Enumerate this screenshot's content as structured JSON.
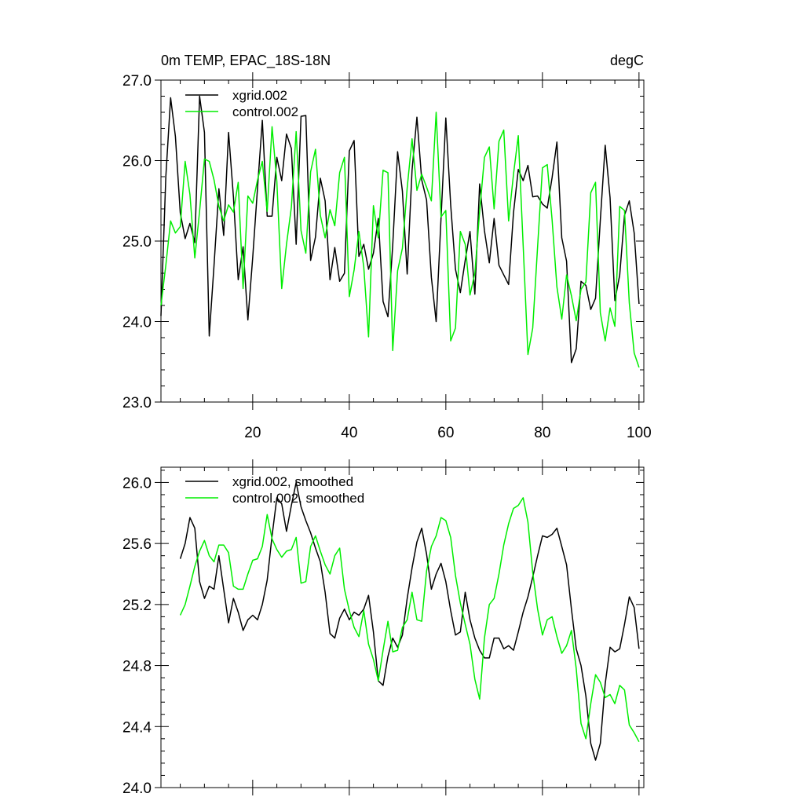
{
  "chart_data": [
    {
      "type": "line",
      "title_left": "0m TEMP, EPAC_18S-18N",
      "title_right": "degC",
      "xlim": [
        1,
        101
      ],
      "ylim": [
        23.0,
        27.0
      ],
      "x_ticks": [
        20,
        40,
        60,
        80,
        100
      ],
      "x_tick_labels": [
        "20",
        "40",
        "60",
        "80",
        "100"
      ],
      "y_ticks": [
        23.0,
        24.0,
        25.0,
        26.0,
        27.0
      ],
      "y_tick_labels": [
        "23.0",
        "24.0",
        "25.0",
        "26.0",
        "27.0"
      ],
      "legend_placement": "top-left",
      "grid": false,
      "series": [
        {
          "name": "xgrid.002",
          "color": "#000000",
          "x_start": 1,
          "values": [
            24.07,
            25.8,
            26.78,
            26.3,
            25.35,
            25.03,
            25.22,
            24.98,
            26.8,
            26.35,
            23.82,
            24.7,
            25.65,
            25.07,
            26.35,
            25.55,
            24.52,
            24.93,
            24.02,
            24.8,
            25.66,
            26.5,
            25.31,
            25.31,
            26.04,
            25.75,
            26.33,
            26.15,
            24.96,
            26.55,
            26.56,
            24.76,
            25.05,
            25.78,
            25.5,
            24.52,
            24.92,
            24.5,
            24.6,
            26.12,
            26.25,
            24.81,
            24.96,
            24.65,
            24.85,
            25.28,
            24.25,
            24.06,
            24.95,
            26.11,
            25.62,
            24.59,
            25.88,
            26.54,
            25.76,
            25.51,
            24.55,
            24.0,
            25.28,
            26.53,
            25.45,
            24.65,
            24.36,
            24.76,
            25.12,
            24.34,
            25.71,
            25.13,
            24.73,
            25.28,
            24.7,
            24.58,
            24.46,
            25.35,
            25.89,
            25.75,
            25.94,
            25.55,
            25.56,
            25.46,
            25.41,
            25.79,
            26.23,
            25.04,
            24.75,
            23.49,
            23.66,
            24.5,
            24.45,
            24.15,
            24.29,
            25.26,
            26.19,
            25.54,
            24.26,
            24.58,
            25.32,
            25.5,
            25.1,
            24.22
          ]
        },
        {
          "name": "control.002",
          "color": "#00ee00",
          "x_start": 1,
          "values": [
            24.2,
            24.7,
            25.25,
            25.1,
            25.18,
            25.99,
            25.58,
            24.79,
            25.37,
            26.02,
            25.99,
            25.76,
            25.43,
            25.25,
            25.45,
            25.36,
            25.73,
            24.41,
            25.56,
            25.47,
            25.76,
            25.99,
            25.37,
            26.42,
            25.74,
            24.41,
            24.96,
            25.42,
            26.36,
            25.13,
            24.85,
            25.86,
            26.14,
            25.32,
            25.04,
            25.39,
            25.19,
            25.85,
            26.04,
            24.31,
            24.64,
            25.12,
            24.68,
            23.81,
            25.44,
            25.04,
            25.88,
            25.85,
            23.64,
            24.63,
            24.91,
            25.66,
            26.27,
            25.63,
            25.83,
            25.67,
            25.5,
            26.6,
            25.3,
            25.38,
            23.76,
            23.92,
            25.12,
            24.96,
            24.33,
            24.6,
            25.37,
            26.04,
            26.17,
            25.4,
            26.24,
            26.38,
            25.25,
            25.83,
            26.31,
            24.95,
            23.59,
            23.92,
            24.93,
            25.91,
            25.95,
            25.26,
            24.43,
            24.03,
            24.58,
            24.32,
            24.01,
            24.4,
            24.49,
            25.6,
            25.73,
            24.11,
            23.76,
            24.17,
            23.94,
            25.43,
            25.38,
            24.23,
            23.61,
            23.43
          ]
        }
      ]
    },
    {
      "type": "line",
      "xlim": [
        1,
        101
      ],
      "ylim": [
        24.0,
        26.1
      ],
      "x_ticks": [
        20,
        40,
        60,
        80,
        100
      ],
      "y_ticks": [
        24.0,
        24.4,
        24.8,
        25.2,
        25.6,
        26.0
      ],
      "y_tick_labels": [
        "24.0",
        "24.4",
        "24.8",
        "25.2",
        "25.6",
        "26.0"
      ],
      "legend_placement": "top-left",
      "grid": false,
      "series": [
        {
          "name": "xgrid.002, smoothed",
          "color": "#000000",
          "x_start": 5,
          "values": [
            25.5,
            25.6,
            25.77,
            25.7,
            25.35,
            25.24,
            25.32,
            25.3,
            25.52,
            25.3,
            25.08,
            25.24,
            25.15,
            25.03,
            25.1,
            25.13,
            25.1,
            25.2,
            25.36,
            25.65,
            25.9,
            25.86,
            25.68,
            25.85,
            26.0,
            25.84,
            25.75,
            25.67,
            25.57,
            25.48,
            25.28,
            25.01,
            24.98,
            25.11,
            25.17,
            25.1,
            25.15,
            25.13,
            25.17,
            25.26,
            25.02,
            24.7,
            24.67,
            24.86,
            24.98,
            24.92,
            25.0,
            25.24,
            25.44,
            25.61,
            25.7,
            25.53,
            25.3,
            25.4,
            25.47,
            25.35,
            25.16,
            25.0,
            25.02,
            25.28,
            25.1,
            24.98,
            24.9,
            24.85,
            24.85,
            24.98,
            24.98,
            24.91,
            24.93,
            24.9,
            25.02,
            25.15,
            25.25,
            25.38,
            25.52,
            25.65,
            25.64,
            25.66,
            25.7,
            25.58,
            25.46,
            25.17,
            24.91,
            24.8,
            24.6,
            24.29,
            24.18,
            24.29,
            24.68,
            24.92,
            24.89,
            24.91,
            25.07,
            25.25,
            25.18,
            24.91
          ]
        },
        {
          "name": "control.002, smoothed",
          "color": "#00ee00",
          "x_start": 5,
          "values": [
            25.13,
            25.2,
            25.32,
            25.45,
            25.55,
            25.62,
            25.52,
            25.48,
            25.59,
            25.59,
            25.54,
            25.32,
            25.3,
            25.3,
            25.4,
            25.49,
            25.5,
            25.58,
            25.79,
            25.63,
            25.56,
            25.51,
            25.55,
            25.56,
            25.64,
            25.34,
            25.35,
            25.58,
            25.65,
            25.55,
            25.46,
            25.4,
            25.52,
            25.57,
            25.3,
            25.16,
            25.05,
            24.99,
            25.16,
            24.94,
            24.84,
            24.7,
            24.9,
            25.09,
            24.89,
            24.9,
            25.05,
            25.1,
            25.28,
            25.1,
            25.09,
            25.42,
            25.58,
            25.65,
            25.77,
            25.75,
            25.64,
            25.39,
            25.21,
            25.07,
            24.94,
            24.71,
            24.58,
            24.98,
            25.2,
            25.24,
            25.4,
            25.59,
            25.73,
            25.83,
            25.85,
            25.9,
            25.74,
            25.41,
            25.17,
            25.0,
            25.1,
            25.12,
            24.99,
            24.88,
            24.93,
            25.03,
            24.78,
            24.42,
            24.32,
            24.55,
            24.74,
            24.69,
            24.59,
            24.61,
            24.55,
            24.67,
            24.64,
            24.41,
            24.36,
            24.3
          ]
        }
      ]
    }
  ]
}
